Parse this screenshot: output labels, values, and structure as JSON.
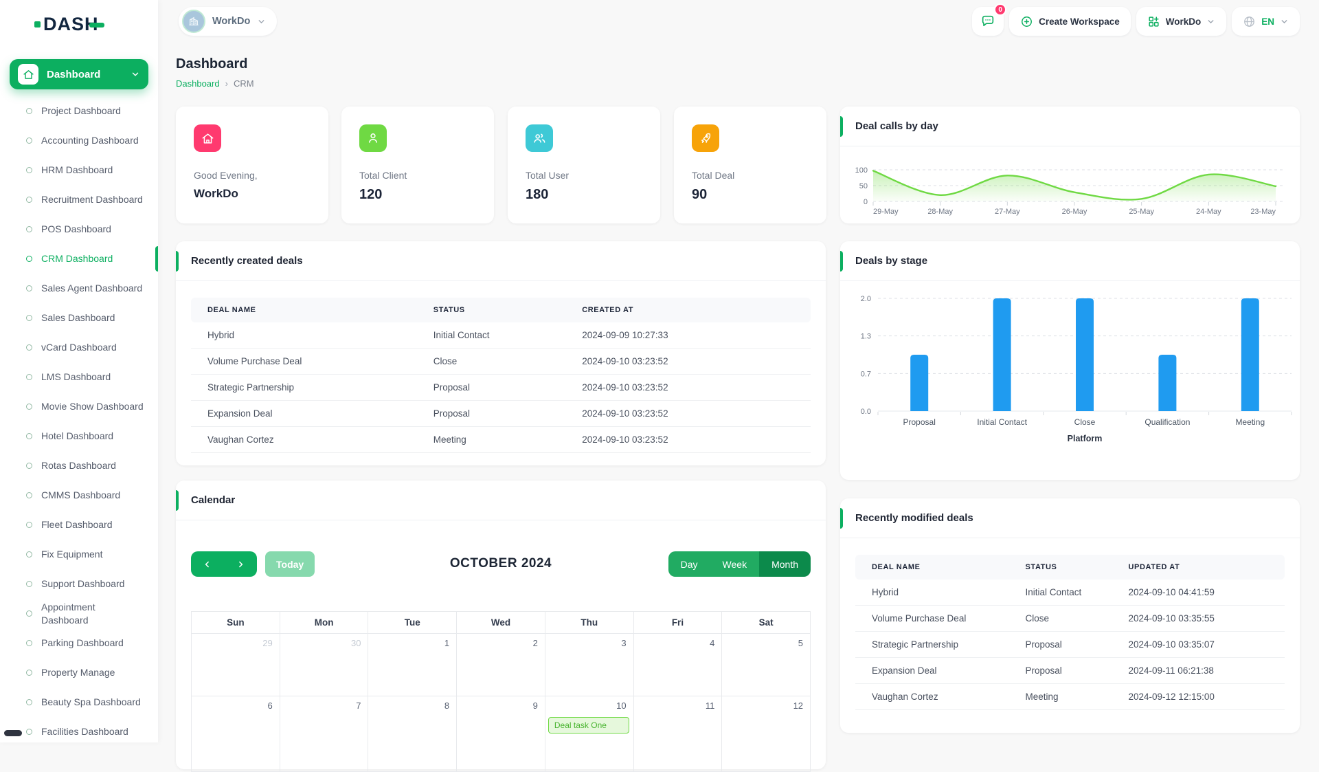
{
  "brand": {
    "name": "DASH"
  },
  "header": {
    "workspace_pill": {
      "label": "WorkDo"
    },
    "chat_badge": "0",
    "create_workspace_label": "Create Workspace",
    "app_switcher_label": "WorkDo",
    "language": "EN"
  },
  "sidebar": {
    "active_group": "Dashboard",
    "items": [
      {
        "label": "Project Dashboard"
      },
      {
        "label": "Accounting Dashboard"
      },
      {
        "label": "HRM Dashboard"
      },
      {
        "label": "Recruitment Dashboard"
      },
      {
        "label": "POS Dashboard"
      },
      {
        "label": "CRM Dashboard",
        "active": true
      },
      {
        "label": "Sales Agent Dashboard"
      },
      {
        "label": "Sales Dashboard"
      },
      {
        "label": "vCard Dashboard"
      },
      {
        "label": "LMS Dashboard"
      },
      {
        "label": "Movie Show Dashboard"
      },
      {
        "label": "Hotel Dashboard"
      },
      {
        "label": "Rotas Dashboard"
      },
      {
        "label": "CMMS Dashboard"
      },
      {
        "label": "Fleet Dashboard"
      },
      {
        "label": "Fix Equipment"
      },
      {
        "label": "Support Dashboard"
      },
      {
        "label": "Appointment Dashboard"
      },
      {
        "label": "Parking Dashboard"
      },
      {
        "label": "Property Manage"
      },
      {
        "label": "Beauty Spa Dashboard"
      },
      {
        "label": "Facilities Dashboard"
      }
    ]
  },
  "page": {
    "title": "Dashboard",
    "breadcrumb": [
      "Dashboard",
      "CRM"
    ]
  },
  "stats": [
    {
      "label": "Good Evening,",
      "value": "WorkDo",
      "icon": "home-icon",
      "color": "#ff3a6f"
    },
    {
      "label": "Total Client",
      "value": "120",
      "icon": "user-icon",
      "color": "#6fd943"
    },
    {
      "label": "Total User",
      "value": "180",
      "icon": "users-icon",
      "color": "#3ec9d6"
    },
    {
      "label": "Total Deal",
      "value": "90",
      "icon": "rocket-icon",
      "color": "#f7a309"
    }
  ],
  "chart_data": [
    {
      "type": "area",
      "title": "Deal calls by day",
      "x": [
        "29-May",
        "28-May",
        "27-May",
        "26-May",
        "25-May",
        "24-May",
        "23-May"
      ],
      "values": [
        97,
        20,
        82,
        29,
        8,
        85,
        48
      ],
      "xlabel": "",
      "ylabel": "",
      "ylim": [
        0,
        100
      ],
      "yticks": [
        100,
        50,
        0
      ],
      "line_color": "#6fd943",
      "grid": "dashed-horizontal",
      "legend": "none"
    },
    {
      "type": "bar",
      "title": "Deals by stage",
      "categories": [
        "Proposal",
        "Initial Contact",
        "Close",
        "Qualification",
        "Meeting"
      ],
      "values": [
        1,
        2,
        2,
        1,
        2
      ],
      "xlabel": "Platform",
      "ylabel": "",
      "ylim": [
        0,
        2
      ],
      "yticks": [
        "2.0",
        "1.3",
        "0.7",
        "0.0"
      ],
      "bar_color": "#1f9bf0",
      "grid": "dashed-horizontal",
      "legend": "none"
    }
  ],
  "recent_created": {
    "title": "Recently created deals",
    "columns": [
      "DEAL NAME",
      "STATUS",
      "CREATED AT"
    ],
    "rows": [
      [
        "Hybrid",
        "Initial Contact",
        "2024-09-09 10:27:33"
      ],
      [
        "Volume Purchase Deal",
        "Close",
        "2024-09-10 03:23:52"
      ],
      [
        "Strategic Partnership",
        "Proposal",
        "2024-09-10 03:23:52"
      ],
      [
        "Expansion Deal",
        "Proposal",
        "2024-09-10 03:23:52"
      ],
      [
        "Vaughan Cortez",
        "Meeting",
        "2024-09-10 03:23:52"
      ]
    ]
  },
  "recent_modified": {
    "title": "Recently modified deals",
    "columns": [
      "DEAL NAME",
      "STATUS",
      "UPDATED AT"
    ],
    "rows": [
      [
        "Hybrid",
        "Initial Contact",
        "2024-09-10 04:41:59"
      ],
      [
        "Volume Purchase Deal",
        "Close",
        "2024-09-10 03:35:55"
      ],
      [
        "Strategic Partnership",
        "Proposal",
        "2024-09-10 03:35:07"
      ],
      [
        "Expansion Deal",
        "Proposal",
        "2024-09-11 06:21:38"
      ],
      [
        "Vaughan Cortez",
        "Meeting",
        "2024-09-12 12:15:00"
      ]
    ]
  },
  "calendar": {
    "title": "Calendar",
    "today_label": "Today",
    "month_title": "OCTOBER 2024",
    "view_buttons": [
      "Day",
      "Week",
      "Month"
    ],
    "active_view": "Month",
    "weekdays": [
      "Sun",
      "Mon",
      "Tue",
      "Wed",
      "Thu",
      "Fri",
      "Sat"
    ],
    "weeks": [
      [
        {
          "day": "29",
          "muted": true
        },
        {
          "day": "30",
          "muted": true
        },
        {
          "day": "1"
        },
        {
          "day": "2"
        },
        {
          "day": "3"
        },
        {
          "day": "4"
        },
        {
          "day": "5"
        }
      ],
      [
        {
          "day": "6"
        },
        {
          "day": "7"
        },
        {
          "day": "8"
        },
        {
          "day": "9"
        },
        {
          "day": "10",
          "event": "Deal task One"
        },
        {
          "day": "11"
        },
        {
          "day": "12"
        }
      ]
    ]
  },
  "colors": {
    "primary": "#0caf60",
    "primary_dark": "#0c8a4b",
    "primary_light": "#86d9ad",
    "bar_blue": "#1f9bf0",
    "line_green": "#6fd943",
    "badge_red": "#ff3a6f"
  }
}
